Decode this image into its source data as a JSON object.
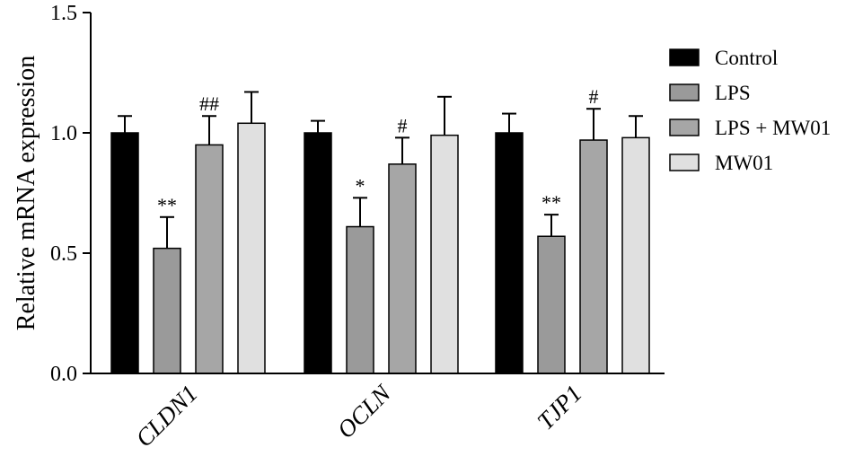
{
  "chart_data": {
    "type": "bar",
    "ylabel": "Relative mRNA expression",
    "ylim": [
      0,
      1.5
    ],
    "yticks": [
      "0.0",
      "0.5",
      "1.0",
      "1.5"
    ],
    "categories": [
      "CLDN1",
      "OCLN",
      "TJP1"
    ],
    "legend_position": "right",
    "series": [
      {
        "name": "Control",
        "color": "#000000",
        "values": [
          1.0,
          1.0,
          1.0
        ],
        "errors": [
          0.07,
          0.05,
          0.08
        ],
        "annotations": [
          "",
          "",
          ""
        ]
      },
      {
        "name": "LPS",
        "color": "#9a9a9a",
        "values": [
          0.52,
          0.61,
          0.57
        ],
        "errors": [
          0.13,
          0.12,
          0.09
        ],
        "annotations": [
          "**",
          "*",
          "**"
        ]
      },
      {
        "name": "LPS + MW01",
        "color": "#a6a6a6",
        "values": [
          0.95,
          0.87,
          0.97
        ],
        "errors": [
          0.12,
          0.11,
          0.13
        ],
        "annotations": [
          "##",
          "#",
          "#"
        ]
      },
      {
        "name": "MW01",
        "color": "#e0e0e0",
        "values": [
          1.04,
          0.99,
          0.98
        ],
        "errors": [
          0.13,
          0.16,
          0.09
        ],
        "annotations": [
          "",
          "",
          ""
        ]
      }
    ]
  }
}
